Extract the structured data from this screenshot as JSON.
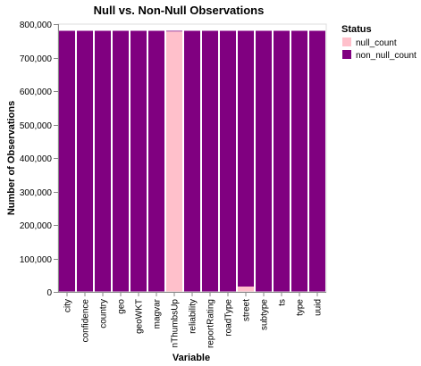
{
  "chart_data": {
    "type": "bar",
    "stacked": true,
    "title": "Null vs. Non-Null Observations",
    "xlabel": "Variable",
    "ylabel": "Number of Observations",
    "ylim": [
      0,
      800000
    ],
    "yticks": [
      0,
      100000,
      200000,
      300000,
      400000,
      500000,
      600000,
      700000,
      800000
    ],
    "ytick_labels": [
      "0",
      "100,000",
      "200,000",
      "300,000",
      "400,000",
      "500,000",
      "600,000",
      "700,000",
      "800,000"
    ],
    "categories": [
      "city",
      "confidence",
      "country",
      "geo",
      "geoWKT",
      "magvar",
      "nThumbsUp",
      "reliability",
      "reportRating",
      "roadType",
      "street",
      "subtype",
      "ts",
      "type",
      "uuid"
    ],
    "series": [
      {
        "name": "null_count",
        "color": "#ffc0cb",
        "values": [
          0,
          0,
          0,
          0,
          0,
          0,
          778000,
          0,
          0,
          0,
          16000,
          0,
          0,
          0,
          0
        ]
      },
      {
        "name": "non_null_count",
        "color": "#800080",
        "values": [
          780000,
          780000,
          780000,
          780000,
          780000,
          780000,
          2000,
          780000,
          780000,
          780000,
          764000,
          780000,
          780000,
          780000,
          780000
        ]
      }
    ],
    "legend": {
      "title": "Status",
      "position": "top-right"
    },
    "grid": false
  }
}
